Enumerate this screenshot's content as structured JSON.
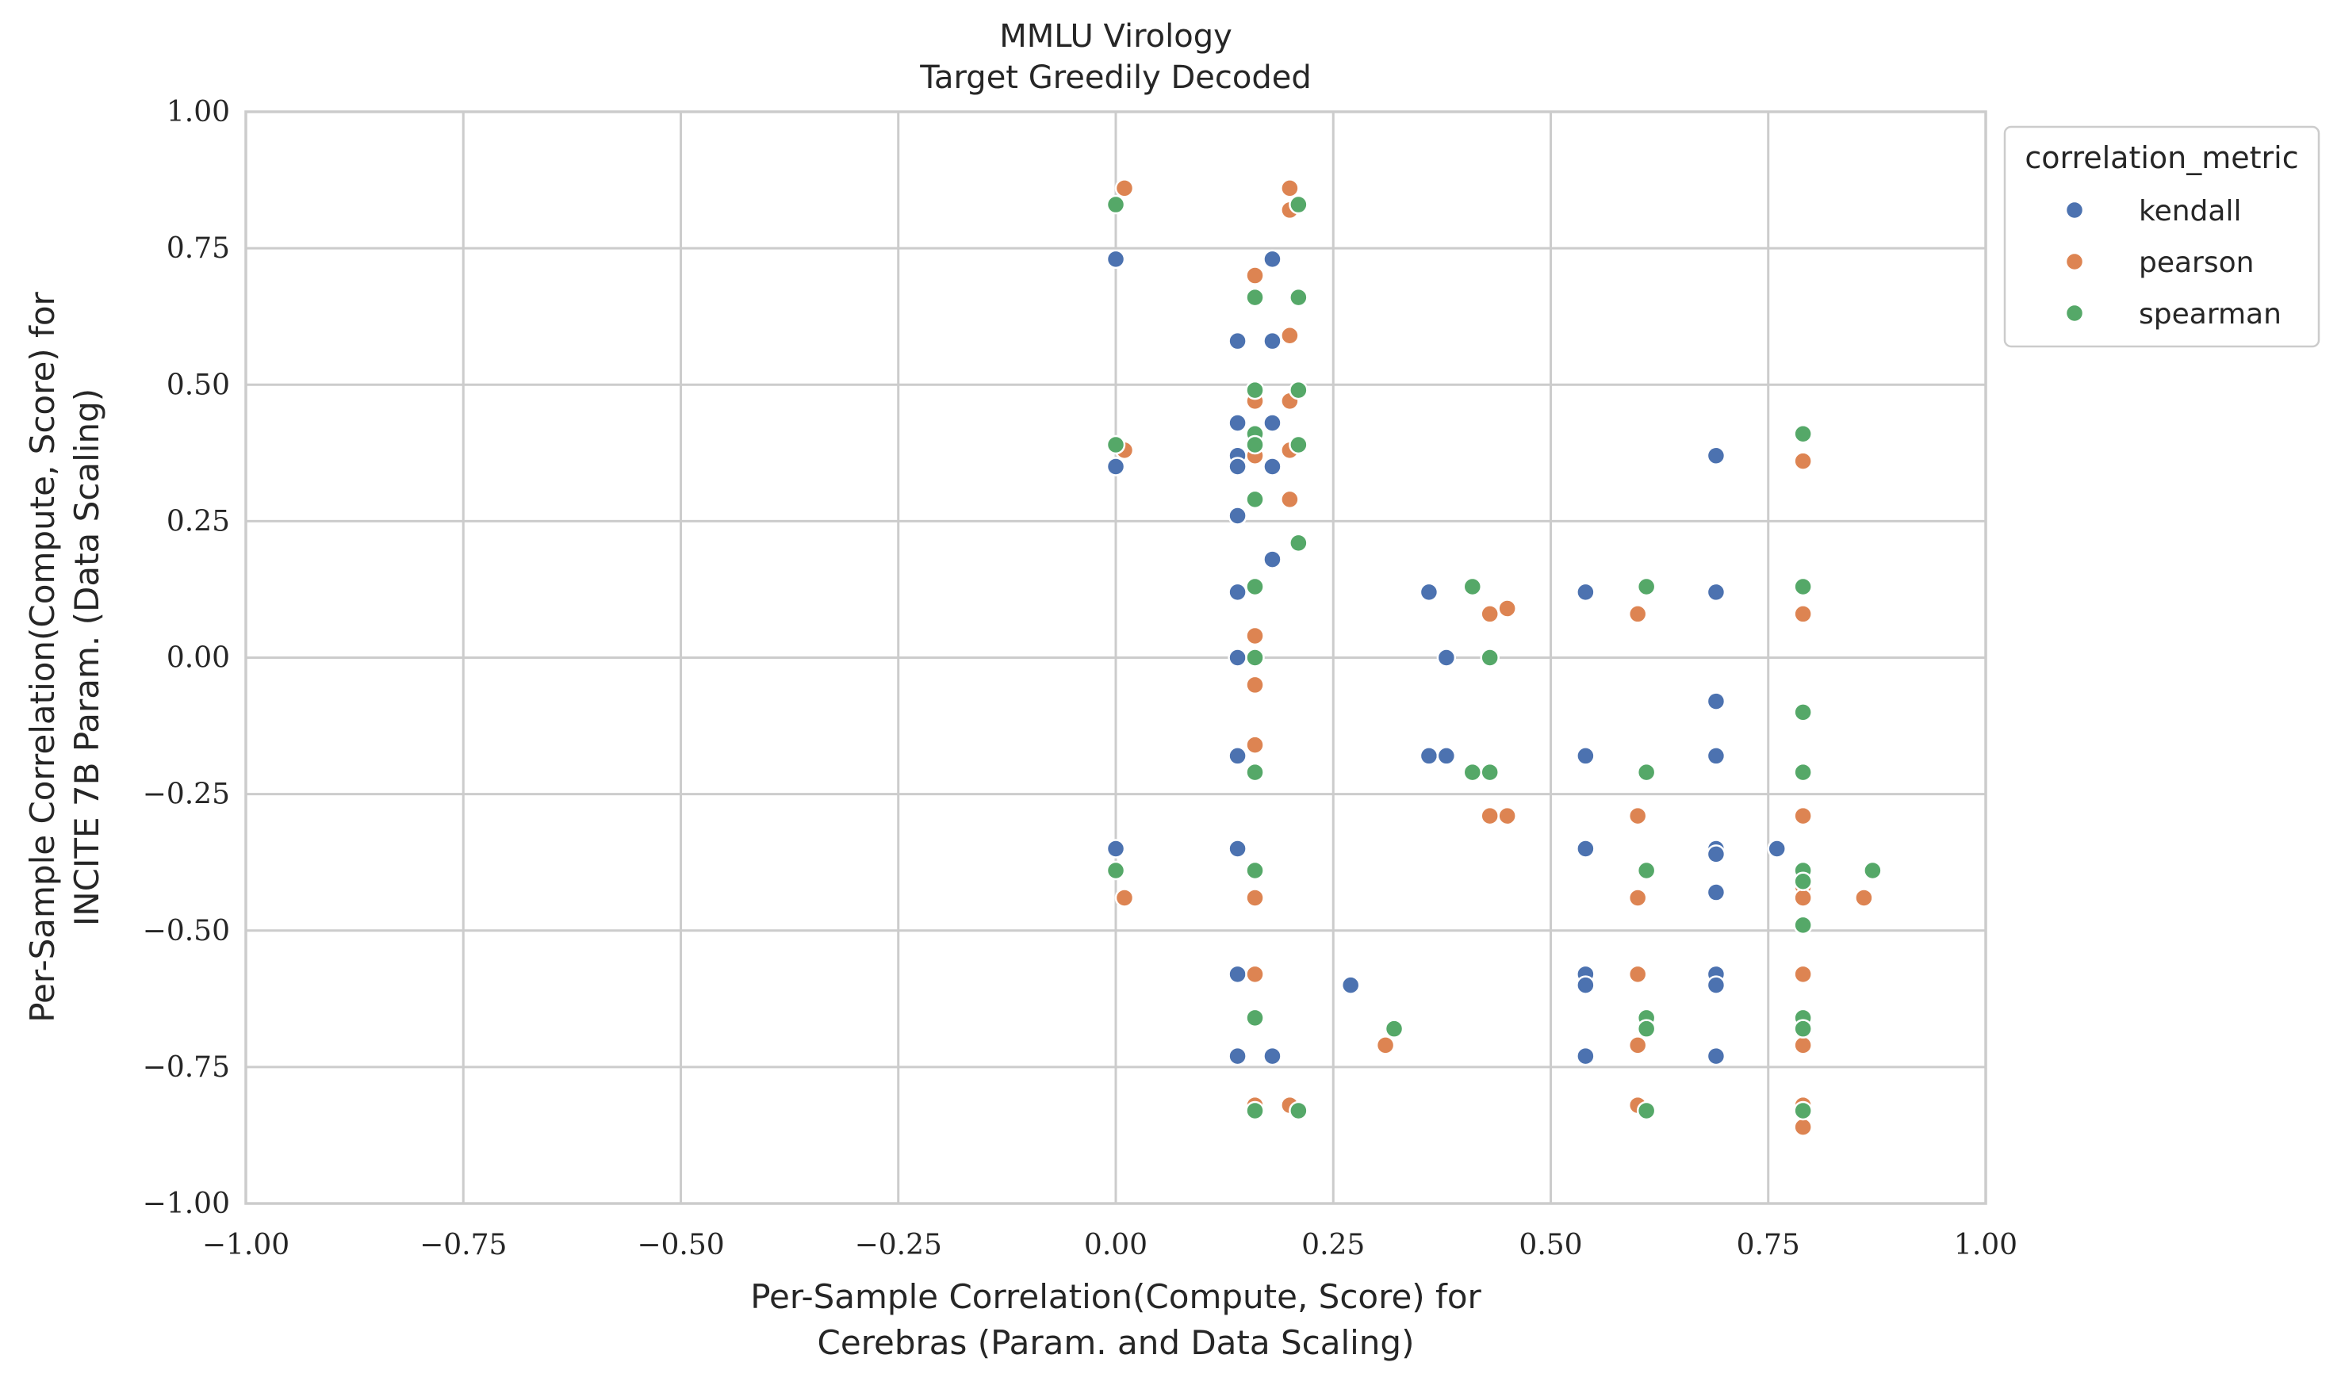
{
  "chart_data": {
    "type": "scatter",
    "title": [
      "MMLU Virology",
      "Target Greedily Decoded"
    ],
    "xlabel": [
      "Per-Sample Correlation(Compute, Score) for",
      "Cerebras (Param. and Data Scaling)"
    ],
    "ylabel": [
      "Per-Sample Correlation(Compute, Score) for",
      "INCITE 7B Param. (Data Scaling)"
    ],
    "xlim": [
      -1.0,
      1.0
    ],
    "ylim": [
      -1.0,
      1.0
    ],
    "xticks": [
      "−1.00",
      "−0.75",
      "−0.50",
      "−0.25",
      "0.00",
      "0.25",
      "0.50",
      "0.75",
      "1.00"
    ],
    "yticks": [
      "−1.00",
      "−0.75",
      "−0.50",
      "−0.25",
      "0.00",
      "0.25",
      "0.50",
      "0.75",
      "1.00"
    ],
    "xtick_values": [
      -1.0,
      -0.75,
      -0.5,
      -0.25,
      0.0,
      0.25,
      0.5,
      0.75,
      1.0
    ],
    "ytick_values": [
      -1.0,
      -0.75,
      -0.5,
      -0.25,
      0.0,
      0.25,
      0.5,
      0.75,
      1.0
    ],
    "grid": true,
    "legend": {
      "title": "correlation_metric",
      "placement": "outside-top-right"
    },
    "series": [
      {
        "name": "kendall",
        "color": "#4c72b0",
        "points": [
          [
            0.0,
            0.73
          ],
          [
            0.0,
            0.35
          ],
          [
            0.0,
            -0.35
          ],
          [
            0.14,
            0.58
          ],
          [
            0.14,
            0.43
          ],
          [
            0.14,
            0.37
          ],
          [
            0.14,
            0.35
          ],
          [
            0.14,
            0.26
          ],
          [
            0.14,
            0.12
          ],
          [
            0.14,
            0.0
          ],
          [
            0.14,
            -0.18
          ],
          [
            0.14,
            -0.35
          ],
          [
            0.14,
            -0.58
          ],
          [
            0.14,
            -0.73
          ],
          [
            0.18,
            0.73
          ],
          [
            0.18,
            0.58
          ],
          [
            0.18,
            0.43
          ],
          [
            0.18,
            0.35
          ],
          [
            0.18,
            0.18
          ],
          [
            0.18,
            -0.73
          ],
          [
            0.27,
            -0.6
          ],
          [
            0.36,
            0.12
          ],
          [
            0.36,
            -0.18
          ],
          [
            0.38,
            0.0
          ],
          [
            0.38,
            -0.18
          ],
          [
            0.54,
            0.12
          ],
          [
            0.54,
            -0.18
          ],
          [
            0.54,
            -0.35
          ],
          [
            0.54,
            -0.58
          ],
          [
            0.54,
            -0.6
          ],
          [
            0.54,
            -0.73
          ],
          [
            0.69,
            0.37
          ],
          [
            0.69,
            0.12
          ],
          [
            0.69,
            -0.08
          ],
          [
            0.69,
            -0.18
          ],
          [
            0.69,
            -0.35
          ],
          [
            0.69,
            -0.36
          ],
          [
            0.69,
            -0.43
          ],
          [
            0.69,
            -0.58
          ],
          [
            0.69,
            -0.6
          ],
          [
            0.69,
            -0.73
          ],
          [
            0.76,
            -0.35
          ]
        ]
      },
      {
        "name": "pearson",
        "color": "#dd8452",
        "points": [
          [
            0.01,
            0.86
          ],
          [
            0.01,
            0.38
          ],
          [
            0.01,
            -0.44
          ],
          [
            0.16,
            0.7
          ],
          [
            0.16,
            0.47
          ],
          [
            0.16,
            0.37
          ],
          [
            0.16,
            0.04
          ],
          [
            0.16,
            -0.05
          ],
          [
            0.16,
            -0.16
          ],
          [
            0.16,
            -0.44
          ],
          [
            0.16,
            -0.58
          ],
          [
            0.16,
            -0.82
          ],
          [
            0.2,
            0.86
          ],
          [
            0.2,
            0.82
          ],
          [
            0.2,
            0.59
          ],
          [
            0.2,
            0.47
          ],
          [
            0.2,
            0.38
          ],
          [
            0.2,
            0.29
          ],
          [
            0.2,
            -0.82
          ],
          [
            0.31,
            -0.71
          ],
          [
            0.43,
            0.08
          ],
          [
            0.43,
            -0.29
          ],
          [
            0.45,
            0.09
          ],
          [
            0.45,
            -0.29
          ],
          [
            0.6,
            0.08
          ],
          [
            0.6,
            -0.29
          ],
          [
            0.6,
            -0.44
          ],
          [
            0.6,
            -0.58
          ],
          [
            0.6,
            -0.71
          ],
          [
            0.6,
            -0.82
          ],
          [
            0.79,
            0.36
          ],
          [
            0.79,
            0.08
          ],
          [
            0.79,
            -0.29
          ],
          [
            0.79,
            -0.42
          ],
          [
            0.79,
            -0.44
          ],
          [
            0.79,
            -0.58
          ],
          [
            0.79,
            -0.71
          ],
          [
            0.79,
            -0.82
          ],
          [
            0.79,
            -0.86
          ],
          [
            0.86,
            -0.44
          ]
        ]
      },
      {
        "name": "spearman",
        "color": "#55a868",
        "points": [
          [
            0.0,
            0.83
          ],
          [
            0.0,
            0.39
          ],
          [
            0.0,
            -0.39
          ],
          [
            0.16,
            0.66
          ],
          [
            0.16,
            0.49
          ],
          [
            0.16,
            0.41
          ],
          [
            0.16,
            0.39
          ],
          [
            0.16,
            0.29
          ],
          [
            0.16,
            0.13
          ],
          [
            0.16,
            0.0
          ],
          [
            0.16,
            -0.21
          ],
          [
            0.16,
            -0.39
          ],
          [
            0.16,
            -0.66
          ],
          [
            0.16,
            -0.83
          ],
          [
            0.21,
            0.83
          ],
          [
            0.21,
            0.66
          ],
          [
            0.21,
            0.49
          ],
          [
            0.21,
            0.39
          ],
          [
            0.21,
            0.21
          ],
          [
            0.21,
            -0.83
          ],
          [
            0.32,
            -0.68
          ],
          [
            0.41,
            0.13
          ],
          [
            0.41,
            -0.21
          ],
          [
            0.43,
            0.0
          ],
          [
            0.43,
            -0.21
          ],
          [
            0.61,
            0.13
          ],
          [
            0.61,
            -0.21
          ],
          [
            0.61,
            -0.39
          ],
          [
            0.61,
            -0.66
          ],
          [
            0.61,
            -0.68
          ],
          [
            0.61,
            -0.83
          ],
          [
            0.79,
            0.41
          ],
          [
            0.79,
            0.13
          ],
          [
            0.79,
            -0.1
          ],
          [
            0.79,
            -0.21
          ],
          [
            0.79,
            -0.39
          ],
          [
            0.79,
            -0.41
          ],
          [
            0.79,
            -0.49
          ],
          [
            0.79,
            -0.66
          ],
          [
            0.79,
            -0.68
          ],
          [
            0.79,
            -0.83
          ],
          [
            0.87,
            -0.39
          ]
        ]
      }
    ]
  }
}
